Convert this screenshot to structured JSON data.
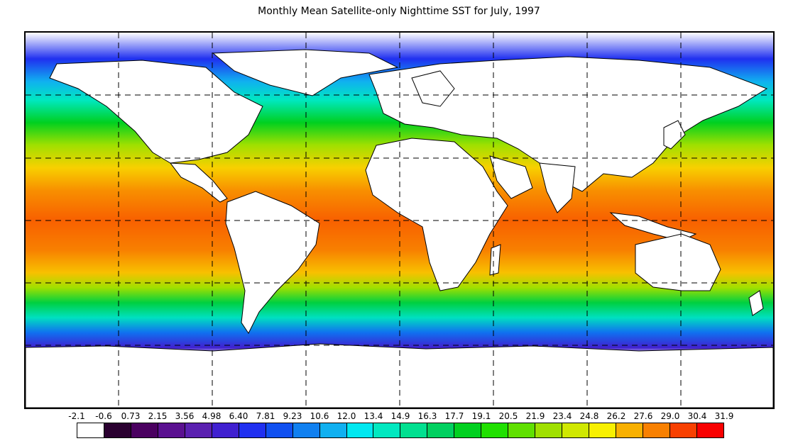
{
  "title": "Monthly Mean Satellite-only Nighttime SST for July, 1997",
  "legend": {
    "labels": [
      "-2.1",
      "-0.6",
      "0.73",
      "2.15",
      "3.56",
      "4.98",
      "6.40",
      "7.81",
      "9.23",
      "10.6",
      "12.0",
      "13.4",
      "14.9",
      "16.3",
      "17.7",
      "19.1",
      "20.5",
      "21.9",
      "23.4",
      "24.8",
      "26.2",
      "27.6",
      "29.0",
      "30.4",
      "31.9"
    ],
    "colors": [
      "#ffffff",
      "#2a0030",
      "#4a0060",
      "#5a1090",
      "#5a20b0",
      "#4020d0",
      "#2030f0",
      "#1050f0",
      "#1080f0",
      "#10b0f0",
      "#00e8f0",
      "#00e8c0",
      "#00e090",
      "#00d060",
      "#00d020",
      "#20e000",
      "#60e000",
      "#a0e000",
      "#d0e800",
      "#f8f000",
      "#f8b000",
      "#f88000",
      "#f84000",
      "#f80000"
    ]
  },
  "map": {
    "lon_grid": [
      -180,
      -135,
      -90,
      -45,
      0,
      45,
      90,
      135,
      180
    ],
    "lat_grid": [
      60,
      30,
      0,
      -30,
      -60
    ]
  }
}
